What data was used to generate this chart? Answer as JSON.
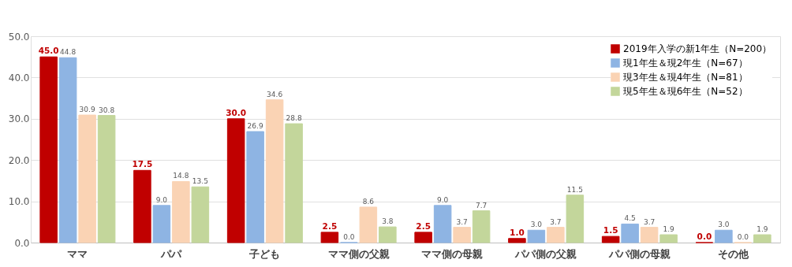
{
  "chart_data": {
    "type": "bar",
    "categories": [
      "ママ",
      "パパ",
      "子ども",
      "ママ側の父親",
      "ママ側の母親",
      "パパ側の父親",
      "パパ側の母親",
      "その他"
    ],
    "series": [
      {
        "name": "2019年入学の新1年生（N=200）",
        "color": "#c00000",
        "values": [
          45.0,
          17.5,
          30.0,
          2.5,
          2.5,
          1.0,
          1.5,
          0.0
        ],
        "value_labels": [
          "45.0",
          "17.5",
          "30.0",
          "2.5",
          "2.5",
          "1.0",
          "1.5",
          "0.0"
        ]
      },
      {
        "name": "現1年生＆現2年生（N=67）",
        "color": "#8eb4e3",
        "values": [
          44.8,
          9.0,
          26.9,
          0.0,
          9.0,
          3.0,
          4.5,
          3.0
        ],
        "value_labels": [
          "44.8",
          "9.0",
          "26.9",
          "0.0",
          "9.0",
          "3.0",
          "4.5",
          "3.0"
        ]
      },
      {
        "name": "現3年生＆現4年生（N=81）",
        "color": "#fad3b4",
        "values": [
          30.9,
          14.8,
          34.6,
          8.6,
          3.7,
          3.7,
          3.7,
          0.0
        ],
        "value_labels": [
          "30.9",
          "14.8",
          "34.6",
          "8.6",
          "3.7",
          "3.7",
          "3.7",
          "0.0"
        ]
      },
      {
        "name": "現5年生＆現6年生（N=52）",
        "color": "#c3d69b",
        "values": [
          30.8,
          13.5,
          28.8,
          3.8,
          7.7,
          11.5,
          1.9,
          1.9
        ],
        "value_labels": [
          "30.8",
          "13.5",
          "28.8",
          "3.8",
          "7.7",
          "11.5",
          "1.9",
          "1.9"
        ]
      }
    ],
    "ylim": [
      0,
      50
    ],
    "yticks": [
      {
        "value": 0,
        "label": "0.0"
      },
      {
        "value": 10,
        "label": "10.0"
      },
      {
        "value": 20,
        "label": "20.0"
      },
      {
        "value": 30,
        "label": "30.0"
      },
      {
        "value": 40,
        "label": "40.0"
      },
      {
        "value": 50,
        "label": "50.0"
      }
    ],
    "grid": "y",
    "legend": "top right"
  }
}
